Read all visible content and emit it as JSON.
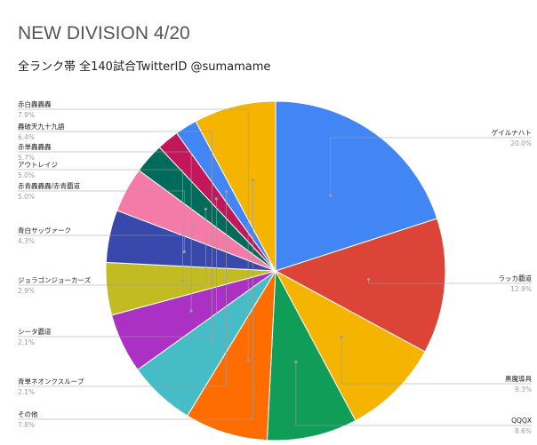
{
  "title": "NEW DIVISION 4/20",
  "subtitle": "全ランク帯 全140試合TwitterID @sumamame",
  "chart_data": {
    "type": "pie",
    "slices": [
      {
        "name": "ゲイルナハト",
        "value": 20.0,
        "label": "20.0%",
        "color": "#4285f4"
      },
      {
        "name": "ラッカ覇道",
        "value": 12.9,
        "label": "12.9%",
        "color": "#db4437"
      },
      {
        "name": "黒魔導具",
        "value": 9.3,
        "label": "9.3%",
        "color": "#f4b400"
      },
      {
        "name": "QQQX",
        "value": 8.6,
        "label": "8.6%",
        "color": "#0f9d58"
      },
      {
        "name": "赤白轟轟轟",
        "value": 7.9,
        "label": "7.9%",
        "color": "#ff6d01"
      },
      {
        "name": "轟破天九十九語",
        "value": 6.4,
        "label": "6.4%",
        "color": "#46bdc6"
      },
      {
        "name": "赤単轟轟轟",
        "value": 5.7,
        "label": "5.7%",
        "color": "#ab30c4"
      },
      {
        "name": "アウトレイジ",
        "value": 5.0,
        "label": "5.0%",
        "color": "#c2bb22"
      },
      {
        "name": "赤青轟轟轟/赤青覇道",
        "value": 5.0,
        "label": "5.0%",
        "color": "#3949ab"
      },
      {
        "name": "青白サッヴァーク",
        "value": 4.3,
        "label": "4.3%",
        "color": "#f47ba8"
      },
      {
        "name": "ジョラゴンジョーカーズ",
        "value": 2.9,
        "label": "2.9%",
        "color": "#006b5a"
      },
      {
        "name": "シータ覇道",
        "value": 2.1,
        "label": "2.1%",
        "color": "#c2185b"
      },
      {
        "name": "青単ネオンクスループ",
        "value": 2.1,
        "label": "2.1%",
        "color": "#4285f4"
      },
      {
        "name": "その他",
        "value": 7.8,
        "label": "7.8%",
        "color": "#f4b400"
      }
    ]
  }
}
